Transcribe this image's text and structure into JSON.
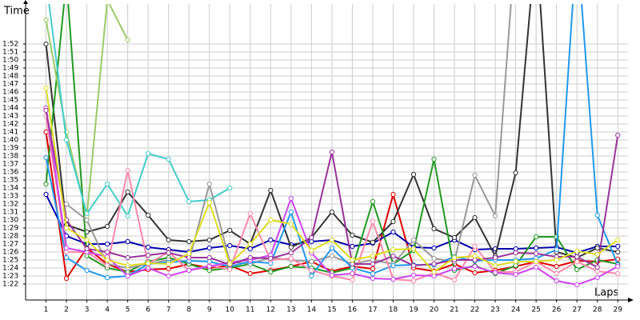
{
  "chart_data": {
    "type": "line",
    "y_label": "Time",
    "x_label": "Laps",
    "x": [
      1,
      2,
      3,
      4,
      5,
      6,
      7,
      8,
      9,
      10,
      11,
      12,
      13,
      14,
      15,
      16,
      17,
      18,
      19,
      20,
      21,
      22,
      23,
      24,
      25,
      26,
      27,
      28,
      29
    ],
    "xlim": [
      0,
      29.5
    ],
    "ylim": [
      80,
      117
    ],
    "grid": true,
    "yticks": [
      {
        "value": 82,
        "label": "1:22"
      },
      {
        "value": 83,
        "label": "1:23"
      },
      {
        "value": 84,
        "label": "1:24"
      },
      {
        "value": 85,
        "label": "1:25"
      },
      {
        "value": 86,
        "label": "1:26"
      },
      {
        "value": 87,
        "label": "1:27"
      },
      {
        "value": 88,
        "label": "1:28"
      },
      {
        "value": 89,
        "label": "1:29"
      },
      {
        "value": 90,
        "label": "1:30"
      },
      {
        "value": 91,
        "label": "1:31"
      },
      {
        "value": 92,
        "label": "1:32"
      },
      {
        "value": 93,
        "label": "1:33"
      },
      {
        "value": 94,
        "label": "1:34"
      },
      {
        "value": 95,
        "label": "1:35"
      },
      {
        "value": 96,
        "label": "1:36"
      },
      {
        "value": 97,
        "label": "1:37"
      },
      {
        "value": 98,
        "label": "1:38"
      },
      {
        "value": 99,
        "label": "1:39"
      },
      {
        "value": 100,
        "label": "1:40"
      },
      {
        "value": 101,
        "label": "1:41"
      },
      {
        "value": 102,
        "label": "1:42"
      },
      {
        "value": 103,
        "label": "1:43"
      },
      {
        "value": 104,
        "label": "1:44"
      },
      {
        "value": 105,
        "label": "1:45"
      },
      {
        "value": 106,
        "label": "1:46"
      },
      {
        "value": 107,
        "label": "1:47"
      },
      {
        "value": 108,
        "label": "1:48"
      },
      {
        "value": 109,
        "label": "1:49"
      },
      {
        "value": 110,
        "label": "1:50"
      },
      {
        "value": 111,
        "label": "1:51"
      },
      {
        "value": 112,
        "label": "1:52"
      }
    ],
    "series": [
      {
        "color": "#e00000",
        "values": [
          101,
          82.7,
          86.5,
          84.5,
          83.5,
          83.8,
          83.9,
          84.5,
          84,
          84.3,
          83.3,
          83.7,
          84.2,
          84.8,
          83.6,
          84.2,
          83.9,
          93.2,
          84,
          83.6,
          84.5,
          83.4,
          83.7,
          84.2,
          84.8,
          84.2,
          84.9,
          84.8,
          85.1
        ]
      },
      {
        "color": "#0000aa",
        "values": [
          93.2,
          88,
          87,
          87,
          87.3,
          86.6,
          86.3,
          86,
          86.5,
          86.8,
          86.4,
          87.5,
          86.9,
          87.3,
          87.5,
          86.7,
          87.1,
          88.5,
          86.6,
          86.5,
          87.5,
          86.3,
          86.4,
          86.4,
          86.5,
          86.6,
          85.9,
          86.7,
          86.7
        ]
      },
      {
        "color": "#333333",
        "values": [
          112,
          89.4,
          88.5,
          89.2,
          93.5,
          90.6,
          87.5,
          87.3,
          87.5,
          88.7,
          87,
          93.7,
          86.6,
          87.8,
          91,
          88.1,
          87.2,
          89.8,
          95.7,
          88.9,
          87.8,
          90.3,
          85.5,
          95.9,
          125,
          86,
          85.3,
          86.5,
          86
        ]
      },
      {
        "color": "#229922",
        "values": [
          94.5,
          120,
          85.5,
          84,
          83.5,
          84.8,
          85.3,
          84.5,
          83.7,
          84,
          84.5,
          83.5,
          84.2,
          84,
          83.4,
          84,
          92.3,
          84.5,
          86.2,
          97.6,
          83.7,
          84.3,
          83.3,
          84.3,
          87.9,
          87.9,
          83.8,
          85,
          84.5
        ]
      },
      {
        "color": "#99cc66",
        "values": [
          115,
          101,
          90.5,
          117.5,
          112.5,
          null,
          null,
          null,
          null,
          null,
          null,
          null,
          null,
          null,
          null,
          null,
          null,
          null,
          null,
          null,
          null,
          null,
          null,
          null,
          null,
          null,
          null,
          null,
          null
        ]
      },
      {
        "color": "#44cccc",
        "values": [
          120,
          100,
          90.8,
          94.5,
          90.5,
          98.3,
          97.6,
          92.3,
          92.5,
          94,
          null,
          null,
          null,
          null,
          null,
          null,
          null,
          null,
          null,
          null,
          null,
          null,
          null,
          null,
          null,
          null,
          null,
          null,
          null
        ]
      },
      {
        "color": "#999999",
        "values": [
          null,
          92,
          90,
          84.5,
          84,
          84.5,
          85,
          84.8,
          94.5,
          84.8,
          84.5,
          85.3,
          85,
          84.8,
          85.5,
          84.5,
          85,
          84.5,
          87.5,
          85.2,
          84.8,
          95.6,
          90.5,
          125,
          null,
          null,
          null,
          null,
          null
        ]
      },
      {
        "color": "#2299ee",
        "values": [
          97.8,
          85.3,
          83.7,
          82.8,
          83,
          84.5,
          84.7,
          84.9,
          84.8,
          84.2,
          84.8,
          84.6,
          91,
          83,
          86.5,
          84,
          83.3,
          84.3,
          84.4,
          84.4,
          85.4,
          84.9,
          85,
          85,
          85.2,
          86.3,
          125,
          90.6,
          84.4
        ]
      },
      {
        "color": "#ff88aa",
        "values": [
          103,
          86,
          86,
          84.3,
          96.2,
          84.5,
          86,
          83.7,
          84.3,
          83.8,
          90.8,
          85,
          85.2,
          83.7,
          83,
          82.5,
          89.8,
          82.6,
          82.4,
          83.4,
          82.5,
          86.7,
          83.5,
          83.5,
          84.8,
          83.3,
          84.8,
          83.6,
          83.3
        ]
      },
      {
        "color": "#cc44ee",
        "values": [
          104,
          86.5,
          86,
          85.4,
          83,
          84,
          83,
          83.7,
          84.2,
          84.7,
          85,
          85.6,
          92.7,
          85.9,
          83.1,
          83.3,
          82.7,
          82.6,
          83.1,
          83,
          83.9,
          84.2,
          83.4,
          83.2,
          84.1,
          82.4,
          81.9,
          82.8,
          84.2
        ]
      },
      {
        "color": "#993399",
        "values": [
          103.7,
          90,
          86.4,
          86,
          85.3,
          85.6,
          85.9,
          85.3,
          85.3,
          84.4,
          85.3,
          85.2,
          85.9,
          87.8,
          98.5,
          84.5,
          84.5,
          85.5,
          84.3,
          84.5,
          85,
          85,
          85.3,
          85.9,
          85.8,
          85.4,
          85.4,
          84.1,
          100.6
        ]
      },
      {
        "color": "#dddd22",
        "values": [
          106.5,
          89,
          87.5,
          85,
          84.3,
          84.6,
          84.5,
          85.8,
          92.2,
          84.5,
          87,
          90,
          89.5,
          86.2,
          87.5,
          85,
          85.5,
          86.3,
          86.4,
          83.5,
          85.3,
          85.5,
          84.3,
          84.8,
          84.8,
          85,
          86.1,
          85.7,
          87.5
        ]
      }
    ]
  }
}
